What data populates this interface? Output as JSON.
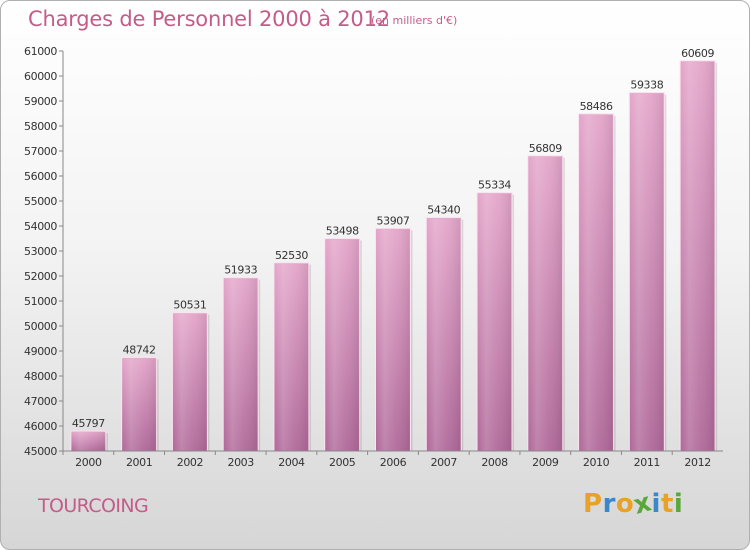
{
  "title": "Charges de Personnel 2000 à 2012",
  "subtitle": "(en milliers d'€)",
  "city": "TOURCOING",
  "logo": {
    "letters": [
      "P",
      "r",
      "o",
      "x",
      "i",
      "t",
      "i"
    ],
    "colors": [
      "#e8a22a",
      "#3a87c9",
      "#e8a22a",
      "#5aa83a",
      "#3a87c9",
      "#e8a22a",
      "#5aa83a"
    ]
  },
  "colors": {
    "accent": "#c45c8a",
    "bar_top": "#e4a6ca",
    "bar_bottom": "#b0699a"
  },
  "chart_data": {
    "type": "bar",
    "categories": [
      "2000",
      "2001",
      "2002",
      "2003",
      "2004",
      "2005",
      "2006",
      "2007",
      "2008",
      "2009",
      "2010",
      "2011",
      "2012"
    ],
    "values": [
      45797,
      48742,
      50531,
      51933,
      52530,
      53498,
      53907,
      54340,
      55334,
      56809,
      58486,
      59338,
      60609
    ],
    "ylim": [
      45000,
      61000
    ],
    "yticks": [
      "45000",
      "46000",
      "47000",
      "48000",
      "49000",
      "50000",
      "51000",
      "52000",
      "53000",
      "54000",
      "55000",
      "56000",
      "57000",
      "58000",
      "59000",
      "60000",
      "61000"
    ],
    "grid": false,
    "legend": "none"
  }
}
